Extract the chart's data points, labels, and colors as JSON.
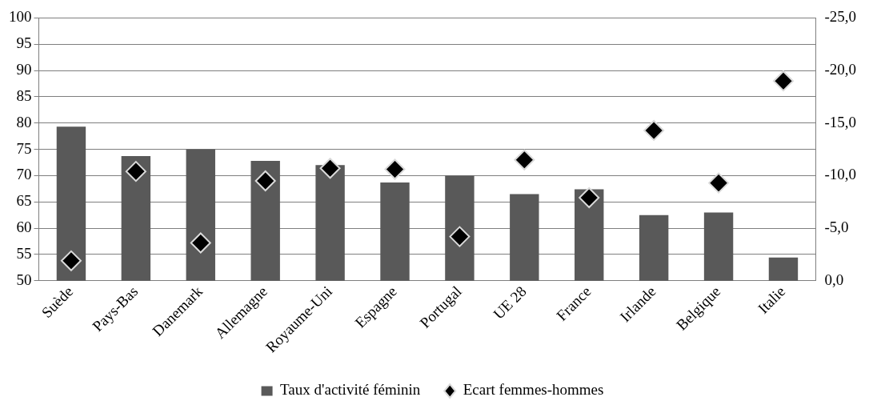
{
  "chart_data": {
    "type": "bar",
    "categories": [
      "Suède",
      "Pays-Bas",
      "Danemark",
      "Allemagne",
      "Royaume-Uni",
      "Espagne",
      "Portugal",
      "UE 28",
      "France",
      "Irlande",
      "Belgique",
      "Italie"
    ],
    "series": [
      {
        "name": "Taux d'activité féminin",
        "color": "#595959",
        "values": [
          79.3,
          73.7,
          75.0,
          72.8,
          72.0,
          68.7,
          70.0,
          66.5,
          67.4,
          62.5,
          63.0,
          54.4
        ]
      },
      {
        "name": "Ecart femmes-hommes",
        "type": "scatter",
        "axis": "y2",
        "color": "#000000",
        "marker": "diamond",
        "values": [
          -1.9,
          -10.4,
          -3.6,
          -9.5,
          -10.7,
          -10.6,
          -4.2,
          -11.5,
          -7.9,
          -14.3,
          -9.3,
          -19.0
        ]
      }
    ],
    "ylim": [
      50,
      100
    ],
    "yticks": [
      50,
      55,
      60,
      65,
      70,
      75,
      80,
      85,
      90,
      95,
      100
    ],
    "y2lim": [
      0,
      -25
    ],
    "y2ticks": [
      {
        "value": 0,
        "label": "0,0"
      },
      {
        "value": -5,
        "label": "-5,0"
      },
      {
        "value": -10,
        "label": "-10,0"
      },
      {
        "value": -15,
        "label": "-15,0"
      },
      {
        "value": -20,
        "label": "-20,0"
      },
      {
        "value": -25,
        "label": "-25,0"
      }
    ],
    "grid": "y",
    "legend": "bottom"
  }
}
